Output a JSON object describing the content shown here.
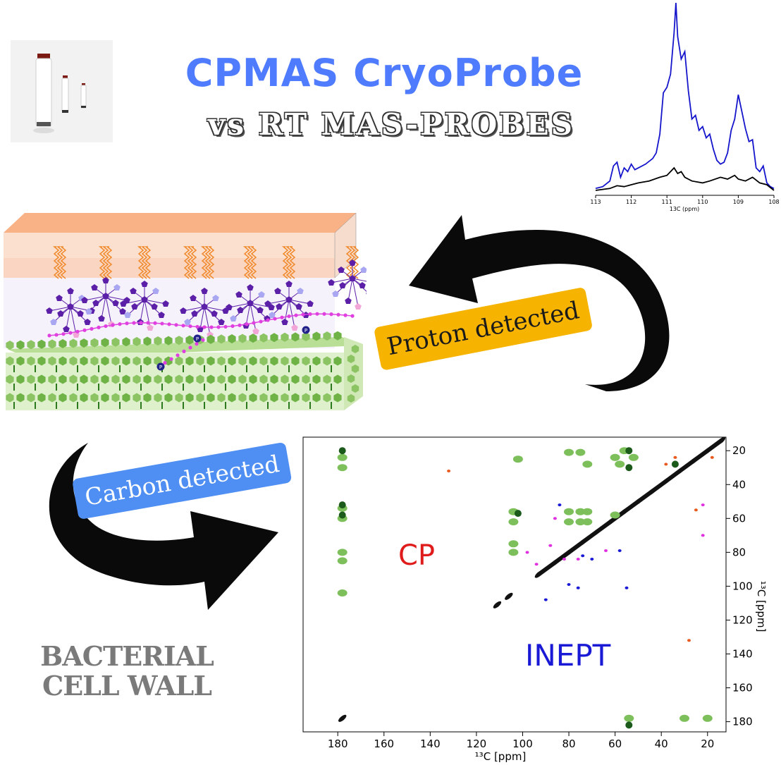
{
  "header": {
    "title": "CPMAS CryoProbe",
    "subtitle": "vs RT MAS-PROBES"
  },
  "spectrum_1d": {
    "xlabel": "13C (ppm)",
    "ticks": [
      "113",
      "112",
      "111",
      "110",
      "109",
      "108"
    ],
    "colors": {
      "cryo": "#1515cc",
      "rt": "#000000"
    }
  },
  "arrows": {
    "proton_label": "Proton detected",
    "carbon_label": "Carbon detected"
  },
  "cell_wall": {
    "caption_line1": "BACTERIAL",
    "caption_line2": "CELL WALL",
    "phosphate_label": "P"
  },
  "spectrum_2d": {
    "cp_label": "CP",
    "inept_label": "INEPT",
    "xlabel": "¹³C [ppm]",
    "ylabel": "¹³C [ppm]",
    "x_ticks": [
      "180",
      "160",
      "140",
      "120",
      "100",
      "80",
      "60",
      "40",
      "20"
    ],
    "y_ticks": [
      "20",
      "40",
      "60",
      "80",
      "100",
      "120",
      "140",
      "160",
      "180"
    ],
    "colors": {
      "cp": "#e01b1b",
      "inept": "#1a1ad6"
    }
  },
  "chart_data": [
    {
      "type": "line",
      "title": "",
      "xlabel": "13C (ppm)",
      "ylabel": "",
      "xlim": [
        113,
        108
      ],
      "ylim": [
        0,
        1
      ],
      "x_reversed": true,
      "series": [
        {
          "x": [
            113.0,
            112.8,
            112.6,
            112.5,
            112.4,
            112.3,
            112.2,
            112.1,
            112.0,
            111.9,
            111.8,
            111.6,
            111.4,
            111.3,
            111.2,
            111.1,
            111.0,
            110.9,
            110.8,
            110.75,
            110.7,
            110.6,
            110.5,
            110.4,
            110.3,
            110.2,
            110.1,
            110.0,
            109.9,
            109.8,
            109.7,
            109.6,
            109.5,
            109.4,
            109.3,
            109.2,
            109.1,
            109.0,
            108.9,
            108.8,
            108.7,
            108.6,
            108.5,
            108.4,
            108.3,
            108.2,
            108.1,
            108.0
          ],
          "y": [
            0.01,
            0.02,
            0.05,
            0.13,
            0.15,
            0.07,
            0.12,
            0.1,
            0.14,
            0.11,
            0.12,
            0.14,
            0.17,
            0.2,
            0.3,
            0.52,
            0.55,
            0.62,
            0.84,
            1.0,
            0.82,
            0.7,
            0.74,
            0.53,
            0.38,
            0.4,
            0.32,
            0.34,
            0.28,
            0.3,
            0.22,
            0.16,
            0.14,
            0.15,
            0.2,
            0.32,
            0.38,
            0.51,
            0.42,
            0.33,
            0.26,
            0.27,
            0.12,
            0.1,
            0.13,
            0.04,
            0.02,
            0.01
          ]
        },
        {
          "x": [
            113.0,
            112.6,
            112.4,
            112.2,
            112.0,
            111.8,
            111.5,
            111.2,
            111.0,
            110.9,
            110.8,
            110.7,
            110.6,
            110.5,
            110.3,
            110.0,
            109.8,
            109.5,
            109.3,
            109.1,
            109.0,
            108.8,
            108.6,
            108.4,
            108.2,
            108.0
          ],
          "y": [
            0.0,
            0.01,
            0.025,
            0.02,
            0.03,
            0.04,
            0.05,
            0.07,
            0.08,
            0.1,
            0.12,
            0.09,
            0.1,
            0.07,
            0.05,
            0.04,
            0.05,
            0.07,
            0.06,
            0.08,
            0.06,
            0.05,
            0.07,
            0.04,
            0.03,
            0.0
          ]
        }
      ]
    },
    {
      "type": "scatter",
      "title": "",
      "xlabel": "¹³C [ppm]",
      "ylabel": "¹³C [ppm]",
      "xlim": [
        195,
        12
      ],
      "ylim": [
        186,
        12
      ],
      "x_reversed": true,
      "y_reversed": true,
      "series": [
        {
          "name": "CP",
          "color": "#7dbf5a",
          "points": [
            [
              178,
              24
            ],
            [
              178,
              30
            ],
            [
              178,
              54
            ],
            [
              178,
              60
            ],
            [
              178,
              80
            ],
            [
              178,
              85
            ],
            [
              178,
              104
            ],
            [
              104,
              56
            ],
            [
              104,
              62
            ],
            [
              104,
              75
            ],
            [
              104,
              80
            ],
            [
              80,
              21
            ],
            [
              75,
              21
            ],
            [
              80,
              56
            ],
            [
              75,
              56
            ],
            [
              72,
              56
            ],
            [
              80,
              62
            ],
            [
              75,
              62
            ],
            [
              72,
              62
            ],
            [
              60,
              24
            ],
            [
              60,
              58
            ],
            [
              52,
              24
            ],
            [
              102,
              25
            ],
            [
              54,
              178
            ],
            [
              30,
              178
            ],
            [
              20,
              178
            ],
            [
              56,
              20
            ],
            [
              58,
              28
            ],
            [
              72,
              28
            ]
          ]
        },
        {
          "name": "CP (dark)",
          "color": "#1c5a1c",
          "points": [
            [
              178,
              20
            ],
            [
              178,
              52
            ],
            [
              178,
              58
            ],
            [
              54,
              20
            ],
            [
              54,
              30
            ],
            [
              54,
              182
            ],
            [
              34,
              28
            ],
            [
              102,
              57
            ]
          ]
        },
        {
          "name": "Diagonal",
          "color": "#111111",
          "points": [
            [
              93,
              93
            ],
            [
              86,
              86
            ],
            [
              80,
              80
            ],
            [
              74,
              74
            ],
            [
              68,
              68
            ],
            [
              62,
              62
            ],
            [
              56,
              56
            ],
            [
              50,
              50
            ],
            [
              44,
              44
            ],
            [
              38,
              38
            ],
            [
              32,
              32
            ],
            [
              26,
              26
            ],
            [
              20,
              20
            ],
            [
              14,
              14
            ],
            [
              111,
              111
            ],
            [
              106,
              106
            ],
            [
              178,
              178
            ]
          ]
        },
        {
          "name": "Magenta",
          "color": "#e030e0",
          "points": [
            [
              98,
              80
            ],
            [
              82,
              84
            ],
            [
              76,
              84
            ],
            [
              88,
              76
            ],
            [
              86,
              60
            ],
            [
              64,
              79
            ],
            [
              22,
              52
            ],
            [
              22,
              70
            ],
            [
              94,
              87
            ]
          ]
        },
        {
          "name": "INEPT",
          "color": "#1a1ad6",
          "points": [
            [
              84,
              52
            ],
            [
              74,
              82
            ],
            [
              70,
              84
            ],
            [
              58,
              79
            ],
            [
              80,
              99
            ],
            [
              76,
              101
            ],
            [
              55,
              101
            ],
            [
              90,
              108
            ]
          ]
        },
        {
          "name": "Orange",
          "color": "#e85a20",
          "points": [
            [
              132,
              32
            ],
            [
              38,
              28
            ],
            [
              34,
              24
            ],
            [
              18,
              24
            ],
            [
              28,
              132
            ],
            [
              25,
              55
            ]
          ]
        }
      ]
    }
  ]
}
